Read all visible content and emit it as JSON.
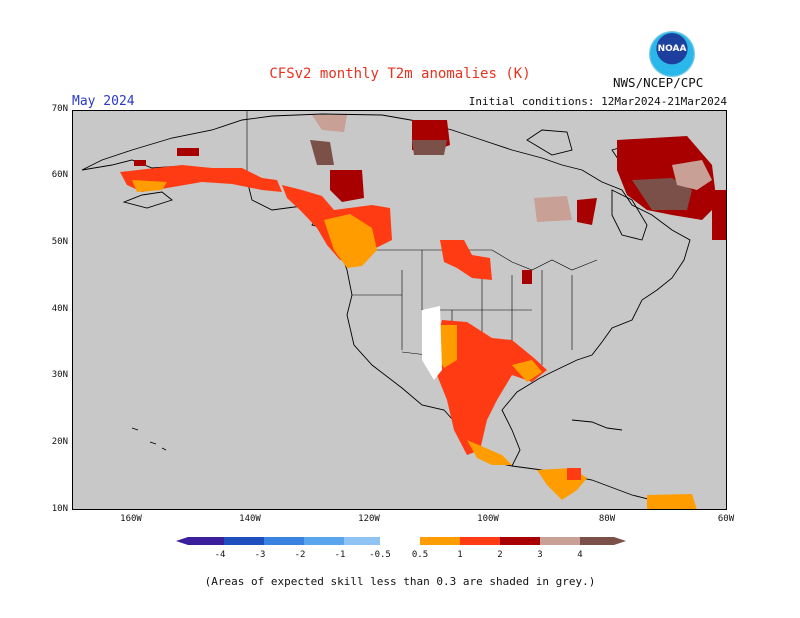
{
  "header": {
    "title": "CFSv2 monthly T2m anomalies (K)",
    "month": "May 2024",
    "initial_conditions": "Initial conditions: 12Mar2024-21Mar2024",
    "agency": "NWS/NCEP/CPC",
    "logo_text": "NOAA"
  },
  "map": {
    "lat_labels": [
      "70N",
      "60N",
      "50N",
      "40N",
      "30N",
      "20N",
      "10N"
    ],
    "lon_labels": [
      "160W",
      "140W",
      "120W",
      "100W",
      "80W",
      "60W"
    ],
    "lat_range": [
      10,
      70
    ],
    "lon_range": [
      -170,
      -60
    ],
    "background_color": "#c8c8c8",
    "anomaly_regions": [
      {
        "area": "Alaska coast",
        "class": "1 to 2"
      },
      {
        "area": "Pacific Northwest / British Columbia",
        "class": "0.5 to 2"
      },
      {
        "area": "Yukon / Northern BC",
        "class": "2 to 3"
      },
      {
        "area": "Southern Plains / Texas",
        "class": "1 to 2"
      },
      {
        "area": "Mexico",
        "class": "1 to 2"
      },
      {
        "area": "Central America",
        "class": "0.5 to 2"
      },
      {
        "area": "Northern Canada / Greenland",
        "class": "3 to 4"
      },
      {
        "area": "Hudson Bay region",
        "class": "3 to 4"
      }
    ]
  },
  "colorbar": {
    "labels": [
      "-4",
      "-3",
      "-2",
      "-1",
      "-0.5",
      "0.5",
      "1",
      "2",
      "3",
      "4"
    ],
    "colors": [
      "#3b1e9c",
      "#1f4fbf",
      "#3a82e0",
      "#5aa6ee",
      "#8ec3f4",
      "#ffffff",
      "#ff9d00",
      "#ff3b14",
      "#a80000",
      "#c8a096",
      "#7a5048"
    ]
  },
  "footnote": "(Areas of expected skill less than 0.3 are shaded in grey.)"
}
